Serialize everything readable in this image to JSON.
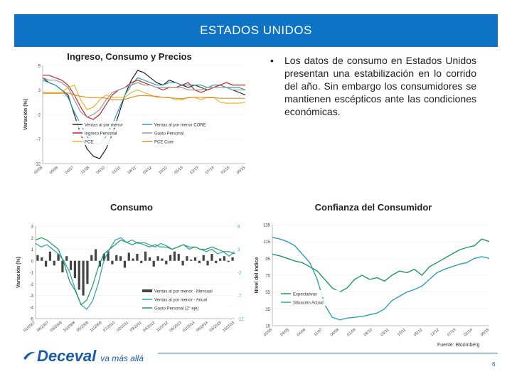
{
  "header": {
    "title": "ESTADOS UNIDOS"
  },
  "bullet": {
    "text": "Los datos de consumo en Estados Unidos presentan una estabilización en lo corrido del año. Sin embargo los consumidores se mantienen escépticos ante las condiciones económicas."
  },
  "source": "Fuente: Bloomberg",
  "footer": {
    "logo": "Deceval",
    "slogan": "va más allá",
    "page": "6"
  },
  "colors": {
    "header_bg": "#0e73c4",
    "teal": "#2f9fb4",
    "green": "#1e9b5c",
    "red": "#c0282a",
    "black": "#222222",
    "gray": "#999999",
    "yellow": "#e8b62a"
  },
  "chart_data": [
    {
      "type": "line",
      "title": "Ingreso, Consumo y Precios",
      "ylabel": "Variación (%)",
      "ylim": [
        -12,
        8
      ],
      "yticks": [
        "8",
        "3",
        "-2",
        "-7",
        "-12"
      ],
      "x_ticks": [
        "02/06",
        "09/06",
        "04/07",
        "11/08",
        "06/10",
        "01/11",
        "08/11",
        "03/12",
        "10/12",
        "05/13",
        "12/13",
        "07/14",
        "02/15",
        "09/15"
      ],
      "legend": [
        "Ventas al por menor",
        "Ventas al por menor CORE",
        "Ingreso Personal",
        "Gasto Personal",
        "PCE",
        "PCE Core"
      ],
      "series": [
        {
          "name": "Ventas al por menor",
          "color": "#222222",
          "values": [
            5.5,
            4.5,
            4,
            3,
            2,
            -2,
            -6,
            -9,
            -10.5,
            -11,
            -9,
            -6,
            -2,
            2,
            5,
            7,
            6.5,
            5.5,
            4.5,
            4,
            5,
            4.5,
            4,
            3.5,
            4,
            3.5,
            3,
            3.5,
            4,
            3.5,
            3,
            2.5,
            2
          ]
        },
        {
          "name": "Ventas al por menor CORE",
          "color": "#2f9fb4",
          "values": [
            5,
            4.5,
            4,
            3,
            1.5,
            -1.5,
            -4,
            -6.5,
            -8,
            -8,
            -6.5,
            -4,
            -1,
            2,
            4,
            5.5,
            5,
            4.5,
            4,
            4,
            4.5,
            4.5,
            4,
            4,
            4,
            4,
            3.5,
            4,
            4,
            3.5,
            3.5,
            3.5,
            3
          ]
        },
        {
          "name": "Ingreso Personal",
          "color": "#c0282a",
          "values": [
            6,
            6,
            5.5,
            5,
            4,
            2,
            -0.5,
            -2.5,
            -3,
            -2,
            0,
            2,
            3,
            3.5,
            4.5,
            5,
            4.5,
            4,
            3.5,
            3,
            3.5,
            3.5,
            4,
            4.5,
            3,
            2.5,
            3,
            3.5,
            4,
            4.5,
            4,
            4,
            4
          ]
        },
        {
          "name": "Gasto Personal",
          "color": "#999999",
          "values": [
            5.5,
            5,
            5,
            4.5,
            3.5,
            1,
            -1.5,
            -2.5,
            -2,
            -1,
            1,
            2.5,
            3,
            3.5,
            4,
            4.5,
            4,
            4,
            3.5,
            3.5,
            3.5,
            3.5,
            3.5,
            3,
            3,
            3,
            3.5,
            3.5,
            3.5,
            3.5,
            3,
            3,
            3
          ]
        },
        {
          "name": "PCE",
          "color": "#e8b62a",
          "values": [
            2.5,
            2.5,
            2.5,
            2.5,
            3.5,
            4,
            1,
            -1,
            -0.5,
            1,
            2,
            1.5,
            1.5,
            1.5,
            2.5,
            3,
            2.5,
            2,
            1.5,
            1.5,
            1.5,
            1,
            1,
            1.5,
            1.5,
            1,
            1.5,
            1.5,
            0.5,
            0.3,
            0.3,
            0.3,
            0.5
          ]
        },
        {
          "name": "PCE Core",
          "color": "#e08e2a",
          "values": [
            2.3,
            2.3,
            2.3,
            2.3,
            2.4,
            2,
            1.7,
            1.5,
            1.4,
            1.5,
            1.3,
            1,
            1,
            1.1,
            1.5,
            1.8,
            1.9,
            1.8,
            1.7,
            1.5,
            1.4,
            1.3,
            1.2,
            1.4,
            1.5,
            1.5,
            1.4,
            1.4,
            1.3,
            1.3,
            1.3,
            1.3,
            1.3
          ]
        }
      ]
    },
    {
      "type": "bar",
      "title": "Consumo",
      "ylabel": "Variación (%)",
      "ylim": [
        -5,
        3
      ],
      "yticks": [
        "3",
        "2",
        "1",
        "0",
        "-1",
        "-2",
        "-3",
        "-4",
        "-5"
      ],
      "y2ticks": [
        "8",
        "3",
        "-2",
        "-7",
        "-12"
      ],
      "x_ticks": [
        "01/2007",
        "08/2007",
        "03/2008",
        "10/2008",
        "05/2009",
        "12/2009",
        "07/2010",
        "02/2011",
        "09/2011",
        "04/2012",
        "11/2012",
        "06/2013",
        "01/2014",
        "08/2014",
        "03/2015",
        "10/2015"
      ],
      "legend": [
        "Ventas al por menor - Mensual",
        "Ventas al por menor - Anual",
        "Gasto Personal (2° eje)"
      ],
      "series": [
        {
          "name": "Ventas al por menor - Mensual",
          "color": "#444444",
          "values": [
            0.5,
            0.3,
            -0.5,
            0.8,
            -0.4,
            0.6,
            -1,
            0.4,
            -0.8,
            -1.5,
            -2.5,
            -3,
            -2,
            0.5,
            1,
            -0.5,
            0.6,
            0.8,
            -0.3,
            0.5,
            0.4,
            -0.6,
            0.7,
            0.2,
            0.6,
            -0.2,
            0.8,
            0.3,
            -0.5,
            0.4,
            0.2,
            -0.3,
            0.5,
            0.8,
            0.6,
            -0.4,
            0.4,
            0.1,
            0.3,
            -0.2,
            0.5,
            -0.4,
            0.6,
            -0.2,
            0.2,
            0.4,
            -0.1,
            0.3
          ]
        },
        {
          "name": "Ventas al por menor - Anual",
          "color": "#2f9fb4",
          "values": [
            1.5,
            1.2,
            1.4,
            1,
            0.6,
            0,
            -1,
            -2.5,
            -3.8,
            -4.2,
            -3.5,
            -2,
            0,
            1,
            1.8,
            2,
            1.6,
            1.8,
            1.5,
            1.6,
            1.4,
            1.2,
            1.5,
            1.3,
            1,
            1.2,
            1.4,
            1,
            1.2,
            1,
            0.8,
            1,
            0.6,
            0.8,
            0.4,
            0.8
          ]
        },
        {
          "name": "Gasto Personal (2° eje)",
          "color": "#1e9b5c",
          "values": [
            5,
            5.5,
            5,
            4,
            3,
            0,
            -4,
            -6,
            -9,
            -8,
            -5,
            -1,
            2,
            3,
            4,
            5,
            4.5,
            4,
            4.5,
            4,
            3.5,
            4,
            3.5,
            3.5,
            3,
            3.5,
            4,
            3.5,
            3.5,
            3,
            3,
            3.5,
            3,
            2.5,
            2.5,
            2
          ]
        }
      ]
    },
    {
      "type": "line",
      "title": "Confianza del Consumidor",
      "ylabel": "Nivel del índice",
      "ylim": [
        15,
        135
      ],
      "yticks": [
        "135",
        "115",
        "95",
        "75",
        "55",
        "35",
        "15"
      ],
      "x_ticks": [
        "02/05",
        "09/05",
        "04/06",
        "11/07",
        "06/08",
        "01/09",
        "08/10",
        "03/11",
        "10/11",
        "05/12",
        "12/12",
        "07/13",
        "02/14",
        "09/15"
      ],
      "legend": [
        "Expectativas",
        "Situación Actual"
      ],
      "series": [
        {
          "name": "Expectativas",
          "color": "#1e9b5c",
          "values": [
            100,
            98,
            95,
            92,
            90,
            85,
            80,
            70,
            60,
            55,
            60,
            70,
            75,
            70,
            72,
            68,
            75,
            80,
            78,
            82,
            75,
            85,
            90,
            95,
            100,
            105,
            108,
            110,
            118,
            115
          ]
        },
        {
          "name": "Situación Actual",
          "color": "#2f9fb4",
          "values": [
            120,
            118,
            115,
            110,
            100,
            90,
            70,
            40,
            25,
            22,
            24,
            25,
            26,
            28,
            30,
            35,
            45,
            50,
            55,
            58,
            62,
            70,
            78,
            82,
            85,
            88,
            90,
            95,
            97,
            95
          ]
        }
      ]
    }
  ]
}
